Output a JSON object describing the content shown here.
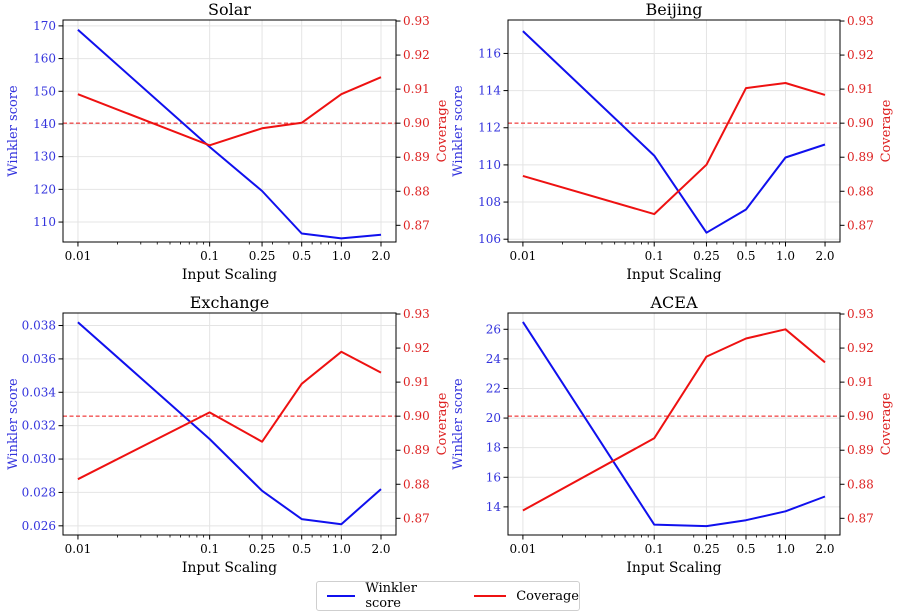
{
  "chart_data": [
    {
      "type": "line",
      "title": "Solar",
      "xlabel": "Input Scaling",
      "ylabel_left": "Winkler score",
      "ylabel_right": "Coverage",
      "x": [
        0.01,
        0.1,
        0.25,
        0.5,
        1.0,
        2.0
      ],
      "x_tick_labels": [
        "0.01",
        "0.1",
        "0.25",
        "0.5",
        "1.0",
        "2.0"
      ],
      "y_left_ticks": [
        "110",
        "120",
        "130",
        "140",
        "150",
        "160",
        "170"
      ],
      "y_right_ticks": [
        "0.87",
        "0.88",
        "0.89",
        "0.90",
        "0.91",
        "0.92",
        "0.93"
      ],
      "ylim_left": [
        103.9,
        171.8
      ],
      "ylim_right": [
        0.8651,
        0.9303
      ],
      "reference_line": 0.9,
      "series": [
        {
          "name": "Winkler score",
          "axis": "left",
          "values": [
            168.8,
            133.0,
            119.5,
            106.5,
            105.0,
            106.1
          ]
        },
        {
          "name": "Coverage",
          "axis": "right",
          "values": [
            0.9085,
            0.8935,
            0.8985,
            0.9001,
            0.9085,
            0.9135
          ]
        }
      ]
    },
    {
      "type": "line",
      "title": "Beijing",
      "xlabel": "Input Scaling",
      "ylabel_left": "Winkler score",
      "ylabel_right": "Coverage",
      "x": [
        0.01,
        0.1,
        0.25,
        0.5,
        1.0,
        2.0
      ],
      "x_tick_labels": [
        "0.01",
        "0.1",
        "0.25",
        "0.5",
        "1.0",
        "2.0"
      ],
      "y_left_ticks": [
        "106",
        "108",
        "110",
        "112",
        "114",
        "116"
      ],
      "y_right_ticks": [
        "0.87",
        "0.88",
        "0.89",
        "0.90",
        "0.91",
        "0.92",
        "0.93"
      ],
      "ylim_left": [
        105.85,
        117.8
      ],
      "ylim_right": [
        0.8651,
        0.9303
      ],
      "reference_line": 0.9,
      "series": [
        {
          "name": "Winkler score",
          "axis": "left",
          "values": [
            117.2,
            110.5,
            106.35,
            107.6,
            110.4,
            111.1
          ]
        },
        {
          "name": "Coverage",
          "axis": "right",
          "values": [
            0.8845,
            0.8733,
            0.8878,
            0.9103,
            0.9118,
            0.9083
          ]
        }
      ]
    },
    {
      "type": "line",
      "title": "Exchange",
      "xlabel": "Input Scaling",
      "ylabel_left": "Winkler score",
      "ylabel_right": "Coverage",
      "x": [
        0.01,
        0.1,
        0.25,
        0.5,
        1.0,
        2.0
      ],
      "x_tick_labels": [
        "0.01",
        "0.1",
        "0.25",
        "0.5",
        "1.0",
        "2.0"
      ],
      "y_left_ticks": [
        "0.026",
        "0.028",
        "0.030",
        "0.032",
        "0.034",
        "0.036",
        "0.038"
      ],
      "y_right_ticks": [
        "0.87",
        "0.88",
        "0.89",
        "0.90",
        "0.91",
        "0.92",
        "0.93"
      ],
      "ylim_left": [
        0.02545,
        0.03875
      ],
      "ylim_right": [
        0.8651,
        0.9303
      ],
      "reference_line": 0.9,
      "series": [
        {
          "name": "Winkler score",
          "axis": "left",
          "values": [
            0.0382,
            0.0312,
            0.0281,
            0.0264,
            0.0261,
            0.0282
          ]
        },
        {
          "name": "Coverage",
          "axis": "right",
          "values": [
            0.8815,
            0.9011,
            0.8925,
            0.9095,
            0.9189,
            0.9128
          ]
        }
      ]
    },
    {
      "type": "line",
      "title": "ACEA",
      "xlabel": "Input Scaling",
      "ylabel_left": "Winkler score",
      "ylabel_right": "Coverage",
      "x": [
        0.01,
        0.1,
        0.25,
        0.5,
        1.0,
        2.0
      ],
      "x_tick_labels": [
        "0.01",
        "0.1",
        "0.25",
        "0.5",
        "1.0",
        "2.0"
      ],
      "y_left_ticks": [
        "14",
        "16",
        "18",
        "20",
        "22",
        "24",
        "26"
      ],
      "y_right_ticks": [
        "0.87",
        "0.88",
        "0.89",
        "0.90",
        "0.91",
        "0.92",
        "0.93"
      ],
      "ylim_left": [
        12.1,
        27.1
      ],
      "ylim_right": [
        0.8651,
        0.9303
      ],
      "reference_line": 0.9,
      "series": [
        {
          "name": "Winkler score",
          "axis": "left",
          "values": [
            26.5,
            12.8,
            12.7,
            13.1,
            13.7,
            14.7
          ]
        },
        {
          "name": "Coverage",
          "axis": "right",
          "values": [
            0.8723,
            0.8935,
            0.9175,
            0.9228,
            0.9255,
            0.9158
          ]
        }
      ]
    }
  ],
  "colors": {
    "winkler": "#1010ee",
    "coverage": "#ee1111",
    "left_axis_text": "#3333dd",
    "right_axis_text": "#dd2222"
  },
  "legend": {
    "items": [
      {
        "label": "Winkler score"
      },
      {
        "label": "Coverage"
      }
    ]
  }
}
